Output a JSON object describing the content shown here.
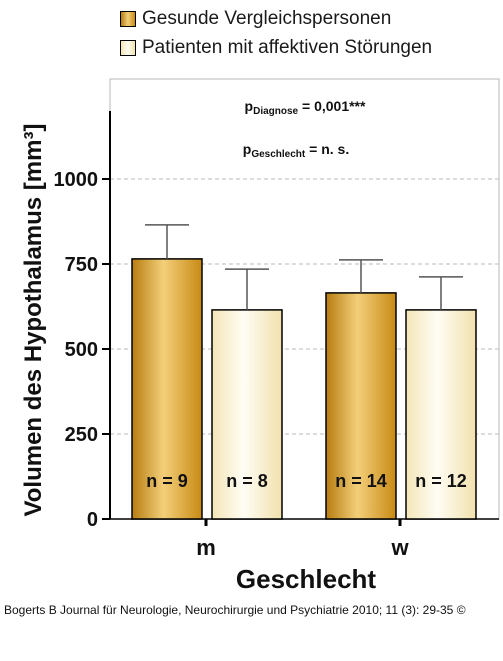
{
  "legend": [
    {
      "label": "Gesunde Vergleichspersonen",
      "color": "#d39a1d"
    },
    {
      "label": "Patienten mit affektiven Störungen",
      "color": "#f8efce"
    }
  ],
  "annotations": {
    "p_diagnose_main": "p",
    "p_diagnose_sub": "Diagnose",
    "p_diagnose_value": " = 0,001***",
    "p_geschlecht_main": "p",
    "p_geschlecht_sub": "Geschlecht",
    "p_geschlecht_value": " = n. s."
  },
  "axis": {
    "ylabel": "Volumen des Hypothalamus [mm³]",
    "xlabel": "Geschlecht"
  },
  "credit": "Bogerts B Journal für Neurologie, Neurochirurgie und Psychiatrie 2010; 11 (3): 29-35 ©",
  "chart_data": {
    "type": "bar",
    "categories": [
      "m",
      "w"
    ],
    "series": [
      {
        "name": "Gesunde Vergleichspersonen",
        "values": [
          765,
          665
        ],
        "errors": [
          100,
          97
        ],
        "n_labels": [
          "n = 9",
          "n = 14"
        ],
        "color": "#d39a1d"
      },
      {
        "name": "Patienten mit affektiven Störungen",
        "values": [
          615,
          615
        ],
        "errors": [
          120,
          97
        ],
        "n_labels": [
          "n = 8",
          "n = 12"
        ],
        "color": "#f8efce"
      }
    ],
    "yticks": [
      0,
      250,
      500,
      750,
      1000
    ],
    "ylim": [
      0,
      1200
    ],
    "grid": true,
    "xlabel": "Geschlecht",
    "ylabel": "Volumen des Hypothalamus [mm³]"
  }
}
